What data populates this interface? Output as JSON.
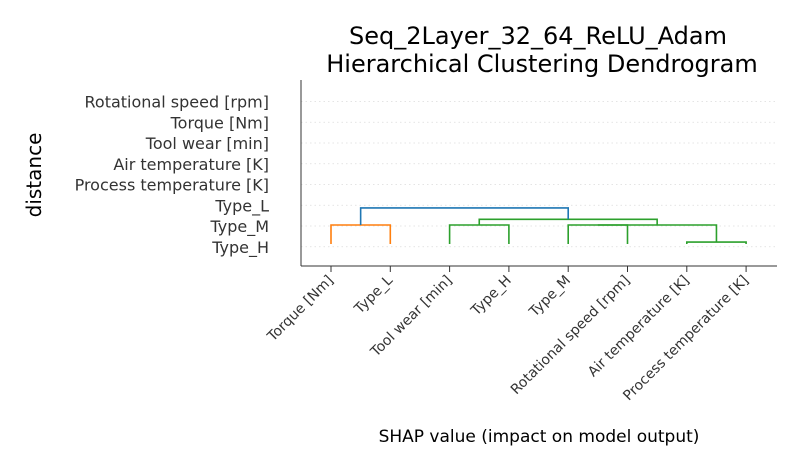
{
  "chart_data": {
    "type": "dendrogram",
    "title_lines": [
      "Seq_2Layer_32_64_ReLU_Adam",
      "Hierarchical Clustering Dendrogram"
    ],
    "xlabel": "SHAP value (impact on model output)",
    "ylabel": "distance",
    "ytick_labels": [
      "Rotational speed [rpm]",
      "Torque [Nm]",
      "Tool wear [min]",
      "Air temperature [K]",
      "Process temperature [K]",
      "Type_L",
      "Type_M",
      "Type_H"
    ],
    "leaves": [
      "Torque [Nm]",
      "Type_L",
      "Tool wear [min]",
      "Type_H",
      "Type_M",
      "Rotational speed [rpm]",
      "Air temperature [K]",
      "Process temperature [K]"
    ],
    "grid": true,
    "links": [
      {
        "left": "Air temperature [K]",
        "right": "Process temperature [K]",
        "height": 0.1,
        "color": "#2ca02c"
      },
      {
        "left": "Torque [Nm]",
        "right": "Type_L",
        "height": 1.0,
        "color": "#ff7f0e"
      },
      {
        "left": "Tool wear [min]",
        "right": "Type_H",
        "height": 1.0,
        "color": "#2ca02c"
      },
      {
        "left": "Type_M",
        "right": "Rotational speed [rpm]",
        "height": 1.0,
        "color": "#2ca02c"
      },
      {
        "left": "Type_M + Rotational speed [rpm]",
        "right": "Air temperature [K] + Process temperature [K]",
        "height": 1.0,
        "color": "#2ca02c"
      },
      {
        "left": "Tool wear [min] + Type_H",
        "right": "Type_M + Rotational speed [rpm] + Air temperature [K] + Process temperature [K]",
        "height": 1.3,
        "color": "#2ca02c"
      },
      {
        "left": "Torque [Nm] + Type_L",
        "right": "remaining features",
        "height": 1.9,
        "color": "#1f77b4"
      }
    ]
  }
}
